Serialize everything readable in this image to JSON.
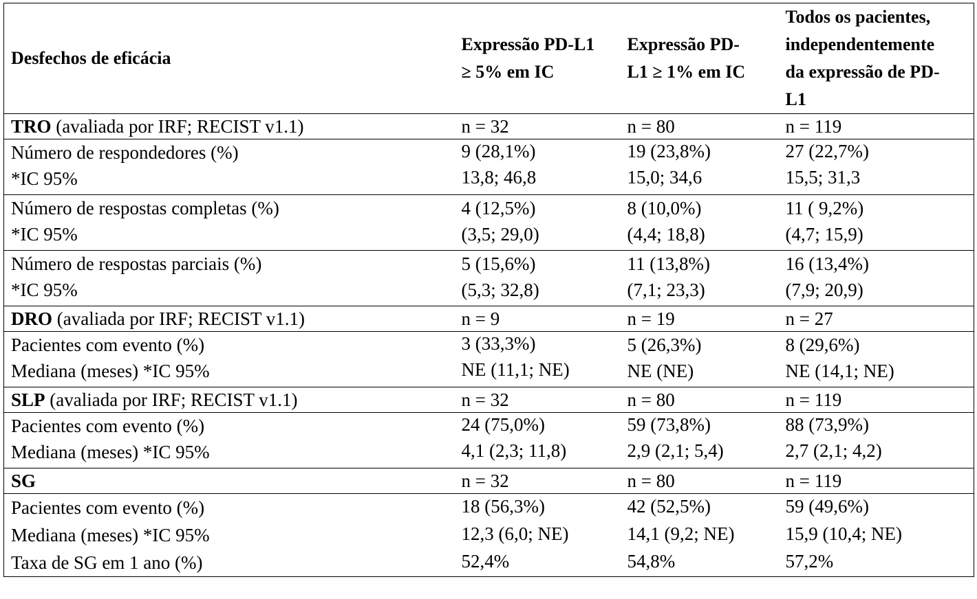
{
  "table": {
    "headers": [
      "Desfechos de eficácia",
      "Expressão PD-L1 ≥ 5% em IC",
      "Expressão PD-L1 ≥ 1% em IC",
      "Todos os pacientes, independentemente da expressão de PD-L1"
    ],
    "header_lines": {
      "c1": [
        "Expressão PD-L1",
        "≥ 5% em IC"
      ],
      "c2": [
        "Expressão PD-",
        "L1 ≥ 1% em IC"
      ],
      "c3": [
        "Todos os pacientes,",
        "independentemente",
        "da expressão de PD-",
        "L1"
      ]
    },
    "sections": {
      "tro": {
        "bold": "TRO",
        "rest": " (avaliada por IRF; RECIST v1.1)",
        "n": [
          "n = 32",
          "n = 80",
          "n = 119"
        ],
        "respondedores": {
          "labels": [
            "Número de respondedores (%)",
            "*IC 95%"
          ],
          "c1": [
            "9 (28,1%)",
            "13,8; 46,8"
          ],
          "c2": [
            "19 (23,8%)",
            "15,0; 34,6"
          ],
          "c3": [
            "27 (22,7%)",
            "15,5; 31,3"
          ]
        },
        "completas": {
          "labels": [
            "Número de respostas completas (%)",
            "*IC 95%"
          ],
          "c1": [
            "4 (12,5%)",
            "(3,5; 29,0)"
          ],
          "c2": [
            "8 (10,0%)",
            "(4,4; 18,8)"
          ],
          "c3": [
            "11 ( 9,2%)",
            "(4,7; 15,9)"
          ]
        },
        "parciais": {
          "labels": [
            "Número de respostas parciais (%)",
            "*IC 95%"
          ],
          "c1": [
            "5 (15,6%)",
            "(5,3; 32,8)"
          ],
          "c2": [
            "11 (13,8%)",
            "(7,1; 23,3)"
          ],
          "c3": [
            "16 (13,4%)",
            "(7,9; 20,9)"
          ]
        }
      },
      "dro": {
        "bold": "DRO",
        "rest": " (avaliada por IRF; RECIST v1.1)",
        "n": [
          "n = 9",
          "n = 19",
          "n = 27"
        ],
        "labels": [
          "Pacientes com evento (%)",
          "Mediana (meses) *IC 95%"
        ],
        "c1": [
          "3 (33,3%)",
          "NE (11,1; NE)"
        ],
        "c2": [
          "5 (26,3%)",
          "NE (NE)"
        ],
        "c3": [
          "8 (29,6%)",
          "NE (14,1; NE)"
        ]
      },
      "slp": {
        "bold": "SLP",
        "rest": " (avaliada por IRF; RECIST v1.1)",
        "n": [
          "n = 32",
          "n = 80",
          "n = 119"
        ],
        "labels": [
          "Pacientes com evento (%)",
          "Mediana (meses) *IC 95%"
        ],
        "c1": [
          "24 (75,0%)",
          "4,1 (2,3; 11,8)"
        ],
        "c2": [
          "59 (73,8%)",
          "2,9 (2,1; 5,4)"
        ],
        "c3": [
          "88 (73,9%)",
          "2,7 (2,1; 4,2)"
        ]
      },
      "sg": {
        "bold": "SG",
        "n": [
          "n = 32",
          "n = 80",
          "n = 119"
        ],
        "labels": [
          "Pacientes com evento (%)",
          "Mediana (meses) *IC 95%",
          "Taxa de SG em 1 ano (%)"
        ],
        "c1": [
          "18 (56,3%)",
          "12,3 (6,0; NE)",
          "52,4%"
        ],
        "c2": [
          "42 (52,5%)",
          "14,1 (9,2; NE)",
          "54,8%"
        ],
        "c3": [
          "59 (49,6%)",
          "15,9 (10,4; NE)",
          "57,2%"
        ]
      }
    }
  }
}
